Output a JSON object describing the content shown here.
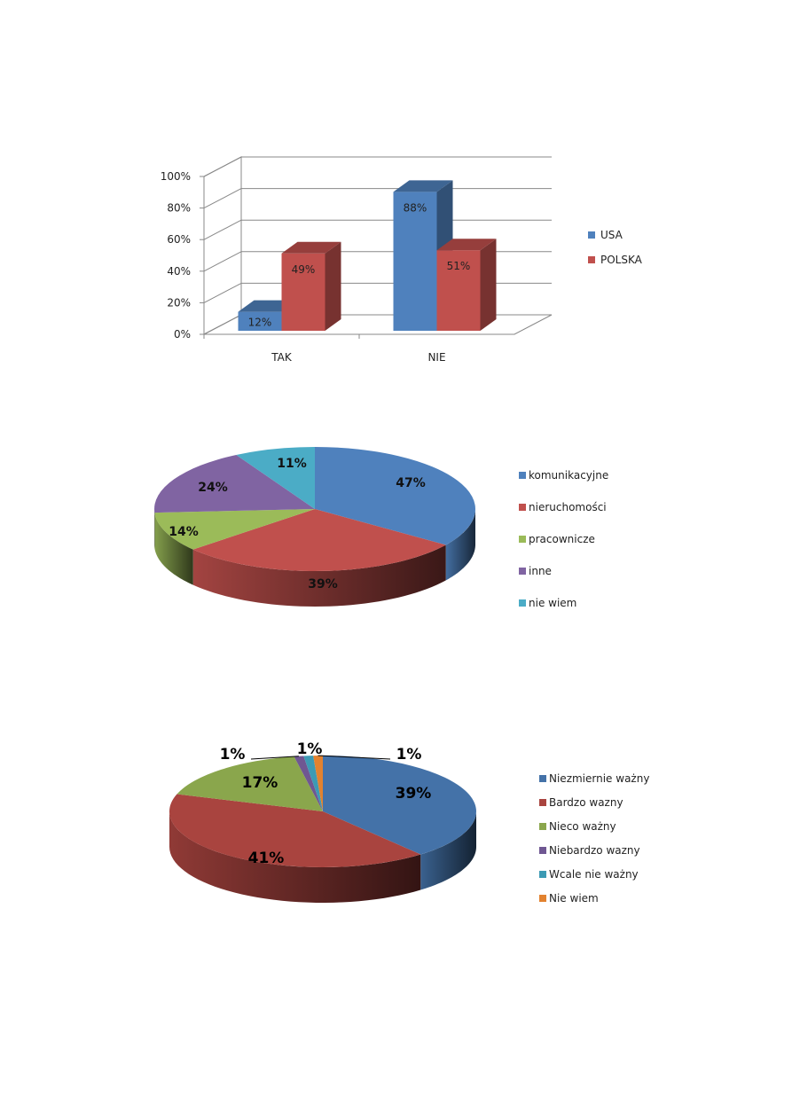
{
  "chart_data": [
    {
      "type": "bar",
      "categories": [
        "TAK",
        "NIE"
      ],
      "series": [
        {
          "name": "USA",
          "values": [
            12,
            88
          ],
          "color": "#4F81BD",
          "labels": [
            "12%",
            "88%"
          ]
        },
        {
          "name": "POLSKA",
          "values": [
            49,
            51
          ],
          "color": "#C0504D",
          "labels": [
            "49%",
            "51%"
          ]
        }
      ],
      "ylim": [
        0,
        100
      ],
      "yticks": [
        "0%",
        "20%",
        "40%",
        "60%",
        "80%",
        "100%"
      ],
      "grid": true,
      "legend": "right",
      "style": "3d"
    },
    {
      "type": "pie",
      "style": "3d",
      "legend": "right",
      "slices": [
        {
          "name": "komunikacyjne",
          "value": 47,
          "label": "47%",
          "color": "#4F81BD"
        },
        {
          "name": "nieruchomości",
          "value": 39,
          "label": "39%",
          "color": "#C0504D"
        },
        {
          "name": "pracownicze",
          "value": 14,
          "label": "14%",
          "color": "#9BBB59"
        },
        {
          "name": "inne",
          "value": 24,
          "label": "24%",
          "color": "#8064A2"
        },
        {
          "name": "nie wiem",
          "value": 11,
          "label": "11%",
          "color": "#4BACC6"
        }
      ]
    },
    {
      "type": "pie",
      "style": "3d",
      "legend": "right",
      "slices": [
        {
          "name": "Niezmiernie ważny",
          "value": 39,
          "label": "39%",
          "color": "#4472A8"
        },
        {
          "name": "Bardzo wazny",
          "value": 41,
          "label": "41%",
          "color": "#A9443F"
        },
        {
          "name": "Nieco ważny",
          "value": 17,
          "label": "17%",
          "color": "#8AA64C"
        },
        {
          "name": "Niebardzo wazny",
          "value": 1,
          "label": "1%",
          "color": "#6F5792"
        },
        {
          "name": "Wcale nie ważny",
          "value": 1,
          "label": "1%",
          "color": "#3C9AB4"
        },
        {
          "name": "Nie wiem",
          "value": 1,
          "label": "1%",
          "color": "#E2822F"
        }
      ]
    }
  ]
}
